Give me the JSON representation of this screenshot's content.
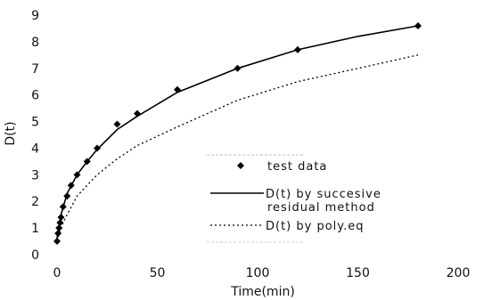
{
  "chart_data": {
    "type": "scatter",
    "xlabel": "Time(min)",
    "ylabel": "D(t)",
    "xlim": [
      0,
      200
    ],
    "ylim": [
      0,
      9
    ],
    "x_ticks": [
      "0",
      "50",
      "100",
      "150",
      "200"
    ],
    "y_ticks": [
      "0",
      "1",
      "2",
      "3",
      "4",
      "5",
      "6",
      "7",
      "8",
      "9"
    ],
    "grid": false,
    "legend_position": "center-right",
    "series": [
      {
        "name": "test data",
        "kind": "markers",
        "marker": "diamond",
        "color": "#000000",
        "x": [
          0,
          0.5,
          1,
          1.5,
          2,
          3,
          5,
          7,
          10,
          15,
          20,
          30,
          40,
          60,
          90,
          120,
          180
        ],
        "y": [
          0.5,
          0.8,
          1.0,
          1.2,
          1.4,
          1.8,
          2.2,
          2.6,
          3.0,
          3.5,
          4.0,
          4.9,
          5.3,
          6.2,
          7.0,
          7.7,
          8.6
        ]
      },
      {
        "name": "D(t) by succesive residual method",
        "kind": "line",
        "dash": "solid",
        "color": "#000000",
        "x": [
          0,
          1,
          2,
          5,
          10,
          15,
          20,
          30,
          40,
          60,
          90,
          120,
          150,
          180
        ],
        "y": [
          0.6,
          1.1,
          1.5,
          2.3,
          3.0,
          3.5,
          3.95,
          4.7,
          5.2,
          6.1,
          7.0,
          7.7,
          8.2,
          8.6
        ]
      },
      {
        "name": "D(t) by poly.eq",
        "kind": "line",
        "dash": "dotted",
        "color": "#000000",
        "x": [
          0,
          1,
          3,
          5,
          10,
          20,
          30,
          40,
          60,
          90,
          120,
          150,
          180
        ],
        "y": [
          0.5,
          0.8,
          1.2,
          1.5,
          2.2,
          3.0,
          3.6,
          4.1,
          4.8,
          5.8,
          6.5,
          7.0,
          7.5
        ]
      }
    ]
  }
}
